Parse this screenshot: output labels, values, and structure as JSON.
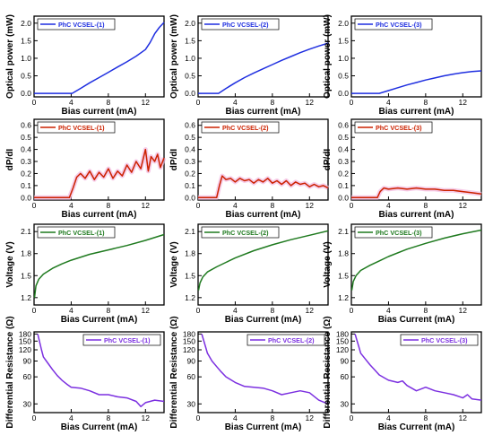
{
  "chart_data": [
    {
      "type": "line",
      "title": "",
      "xlabel": "Bias current (mA)",
      "ylabel": "Optical power (mW)",
      "xlim": [
        0,
        14
      ],
      "ylim": [
        -0.1,
        2.2
      ],
      "xticks": [
        "0",
        "4",
        "8",
        "12"
      ],
      "yticks": [
        "0.0",
        "0.5",
        "1.0",
        "1.5",
        "2.0"
      ],
      "legend_position": "top-left",
      "grid": false,
      "series": [
        {
          "name": "PhC VCSEL-(1)",
          "color": "#1f2fe0",
          "x": [
            0,
            4.1,
            5,
            6,
            7,
            8,
            9,
            10,
            11,
            12,
            12.5,
            13,
            13.5,
            14
          ],
          "y": [
            0,
            0,
            0.14,
            0.3,
            0.45,
            0.6,
            0.75,
            0.9,
            1.06,
            1.25,
            1.45,
            1.7,
            1.88,
            2.02
          ]
        }
      ]
    },
    {
      "type": "line",
      "title": "",
      "xlabel": "Bias current (mA)",
      "ylabel": "Optical power (mW)",
      "xlim": [
        0,
        14
      ],
      "ylim": [
        -0.1,
        2.2
      ],
      "xticks": [
        "0",
        "4",
        "8",
        "12"
      ],
      "yticks": [
        "0.0",
        "0.5",
        "1.0",
        "1.5",
        "2.0"
      ],
      "legend_position": "top-left",
      "grid": false,
      "series": [
        {
          "name": "PhC VCSEL-(2)",
          "color": "#1f2fe0",
          "x": [
            0,
            2.2,
            3,
            4,
            5,
            6,
            7,
            8,
            9,
            10,
            11,
            12,
            13,
            14
          ],
          "y": [
            0,
            0,
            0.14,
            0.3,
            0.45,
            0.58,
            0.7,
            0.82,
            0.94,
            1.05,
            1.16,
            1.26,
            1.35,
            1.43
          ]
        }
      ]
    },
    {
      "type": "line",
      "title": "",
      "xlabel": "Bias current (mA)",
      "ylabel": "Optical power (mW)",
      "xlim": [
        0,
        14
      ],
      "ylim": [
        -0.1,
        2.2
      ],
      "xticks": [
        "0",
        "4",
        "8",
        "12"
      ],
      "yticks": [
        "0.0",
        "0.5",
        "1.0",
        "1.5",
        "2.0"
      ],
      "legend_position": "top-left",
      "grid": false,
      "series": [
        {
          "name": "PhC VCSEL-(3)",
          "color": "#1f2fe0",
          "x": [
            0,
            3,
            4,
            5,
            6,
            7,
            8,
            9,
            10,
            11,
            12,
            13,
            14
          ],
          "y": [
            0,
            0,
            0.08,
            0.16,
            0.24,
            0.31,
            0.38,
            0.44,
            0.5,
            0.55,
            0.59,
            0.62,
            0.64
          ]
        }
      ]
    },
    {
      "type": "line",
      "title": "",
      "xlabel": "Bias current (mA)",
      "ylabel": "dP/dI",
      "xlim": [
        0,
        14
      ],
      "ylim": [
        -0.02,
        0.65
      ],
      "xticks": [
        "0",
        "4",
        "8",
        "12"
      ],
      "yticks": [
        "0.0",
        "0.1",
        "0.2",
        "0.3",
        "0.4",
        "0.5",
        "0.6"
      ],
      "legend_position": "top-left",
      "grid": false,
      "series": [
        {
          "name": "PhC VCSEL-(1)",
          "color": "#cc2200",
          "x": [
            0,
            3.8,
            4.2,
            4.6,
            5,
            5.5,
            6,
            6.5,
            7,
            7.5,
            8,
            8.5,
            9,
            9.5,
            10,
            10.5,
            11,
            11.5,
            12,
            12.3,
            12.6,
            13,
            13.3,
            13.6,
            14
          ],
          "y": [
            0,
            0,
            0.08,
            0.17,
            0.2,
            0.16,
            0.22,
            0.15,
            0.21,
            0.17,
            0.24,
            0.16,
            0.22,
            0.18,
            0.27,
            0.21,
            0.3,
            0.24,
            0.4,
            0.22,
            0.34,
            0.3,
            0.36,
            0.25,
            0.33
          ]
        }
      ]
    },
    {
      "type": "line",
      "title": "",
      "xlabel": "Bias current (mA)",
      "ylabel": "dP/dI",
      "xlim": [
        0,
        14
      ],
      "ylim": [
        -0.02,
        0.65
      ],
      "xticks": [
        "0",
        "4",
        "8",
        "12"
      ],
      "yticks": [
        "0.0",
        "0.1",
        "0.2",
        "0.3",
        "0.4",
        "0.5",
        "0.6"
      ],
      "legend_position": "top-left",
      "grid": false,
      "series": [
        {
          "name": "PhC VCSEL-(2)",
          "color": "#cc2200",
          "x": [
            0,
            2,
            2.3,
            2.6,
            3,
            3.5,
            4,
            4.5,
            5,
            5.5,
            6,
            6.5,
            7,
            7.5,
            8,
            8.5,
            9,
            9.5,
            10,
            10.5,
            11,
            11.5,
            12,
            12.5,
            13,
            13.5,
            14
          ],
          "y": [
            0,
            0,
            0.1,
            0.18,
            0.15,
            0.16,
            0.13,
            0.16,
            0.14,
            0.15,
            0.12,
            0.15,
            0.13,
            0.16,
            0.12,
            0.14,
            0.11,
            0.14,
            0.1,
            0.13,
            0.11,
            0.12,
            0.09,
            0.11,
            0.09,
            0.1,
            0.08
          ]
        }
      ]
    },
    {
      "type": "line",
      "title": "",
      "xlabel": "Bias current (mA)",
      "ylabel": "dP/dI",
      "xlim": [
        0,
        14
      ],
      "ylim": [
        -0.02,
        0.65
      ],
      "xticks": [
        "0",
        "4",
        "8",
        "12"
      ],
      "yticks": [
        "0.0",
        "0.1",
        "0.2",
        "0.3",
        "0.4",
        "0.5",
        "0.6"
      ],
      "legend_position": "top-left",
      "grid": false,
      "series": [
        {
          "name": "PhC VCSEL-(3)",
          "color": "#cc2200",
          "x": [
            0,
            2.8,
            3.1,
            3.5,
            4,
            5,
            6,
            7,
            8,
            9,
            10,
            11,
            12,
            13,
            14
          ],
          "y": [
            0,
            0,
            0.05,
            0.08,
            0.07,
            0.08,
            0.07,
            0.08,
            0.07,
            0.07,
            0.06,
            0.06,
            0.05,
            0.04,
            0.03
          ]
        }
      ]
    },
    {
      "type": "line",
      "title": "",
      "xlabel": "Bias Current (mA)",
      "ylabel": "Voltage (V)",
      "xlim": [
        0,
        14
      ],
      "ylim": [
        1.1,
        2.2
      ],
      "xticks": [
        "0",
        "4",
        "8",
        "12"
      ],
      "yticks": [
        "1.2",
        "1.5",
        "1.8",
        "2.1"
      ],
      "legend_position": "top-left",
      "grid": false,
      "series": [
        {
          "name": "PhC VCSEL-(1)",
          "color": "#1f7a1f",
          "x": [
            0.05,
            0.2,
            0.5,
            1,
            2,
            3,
            4,
            6,
            8,
            10,
            12,
            14
          ],
          "y": [
            1.2,
            1.36,
            1.45,
            1.52,
            1.6,
            1.66,
            1.71,
            1.79,
            1.85,
            1.91,
            1.98,
            2.06
          ]
        }
      ]
    },
    {
      "type": "line",
      "title": "",
      "xlabel": "Bias Current (mA)",
      "ylabel": "Voltage (V)",
      "xlim": [
        0,
        14
      ],
      "ylim": [
        1.1,
        2.2
      ],
      "xticks": [
        "0",
        "4",
        "8",
        "12"
      ],
      "yticks": [
        "1.2",
        "1.5",
        "1.8",
        "2.1"
      ],
      "legend_position": "top-left",
      "grid": false,
      "series": [
        {
          "name": "PhC VCSEL-(2)",
          "color": "#1f7a1f",
          "x": [
            0.05,
            0.2,
            0.5,
            1,
            2,
            3,
            4,
            6,
            8,
            10,
            12,
            14
          ],
          "y": [
            1.3,
            1.4,
            1.48,
            1.55,
            1.62,
            1.68,
            1.74,
            1.84,
            1.92,
            1.99,
            2.05,
            2.11
          ]
        }
      ]
    },
    {
      "type": "line",
      "title": "",
      "xlabel": "Bias Current (mA)",
      "ylabel": "Voltage (V)",
      "xlim": [
        0,
        14
      ],
      "ylim": [
        1.1,
        2.2
      ],
      "xticks": [
        "0",
        "4",
        "8",
        "12"
      ],
      "yticks": [
        "1.2",
        "1.5",
        "1.8",
        "2.1"
      ],
      "legend_position": "top-left",
      "grid": false,
      "series": [
        {
          "name": "PhC VCSEL-(3)",
          "color": "#1f7a1f",
          "x": [
            0.05,
            0.2,
            0.5,
            1,
            2,
            3,
            4,
            6,
            8,
            10,
            12,
            14
          ],
          "y": [
            1.3,
            1.42,
            1.5,
            1.57,
            1.64,
            1.7,
            1.76,
            1.86,
            1.94,
            2.01,
            2.07,
            2.12
          ]
        }
      ]
    },
    {
      "type": "line",
      "title": "",
      "xlabel": "Bias Current (mA)",
      "ylabel": "Differential Resistance (Ω)",
      "xlim": [
        0,
        14
      ],
      "ylim": [
        24,
        190
      ],
      "yscale": "log",
      "xticks": [
        "0",
        "4",
        "8",
        "12"
      ],
      "yticks": [
        "30",
        "60",
        "90",
        "120",
        "150",
        "180"
      ],
      "legend_position": "top-right",
      "grid": false,
      "series": [
        {
          "name": "PhC VCSEL-(1)",
          "color": "#7b2fe0",
          "x": [
            0.4,
            0.8,
            1,
            1.5,
            2,
            2.5,
            3,
            3.5,
            4,
            5,
            6,
            7,
            8,
            9,
            10,
            11,
            11.5,
            12,
            13,
            14
          ],
          "y": [
            180,
            120,
            100,
            85,
            72,
            62,
            55,
            50,
            46,
            45,
            42,
            38,
            38,
            36,
            35,
            32,
            28,
            31,
            33,
            32
          ]
        }
      ]
    },
    {
      "type": "line",
      "title": "",
      "xlabel": "Bias Current (mA)",
      "ylabel": "Differential Resistance (Ω)",
      "xlim": [
        0,
        14
      ],
      "ylim": [
        24,
        190
      ],
      "yscale": "log",
      "xticks": [
        "0",
        "4",
        "8",
        "12"
      ],
      "yticks": [
        "30",
        "60",
        "90",
        "120",
        "150",
        "180"
      ],
      "legend_position": "top-right",
      "grid": false,
      "series": [
        {
          "name": "PhC VCSEL-(2)",
          "color": "#7b2fe0",
          "x": [
            0.4,
            0.8,
            1,
            1.5,
            2,
            2.5,
            3,
            4,
            5,
            6,
            7,
            8,
            9,
            10,
            11,
            12,
            13,
            14
          ],
          "y": [
            180,
            130,
            110,
            90,
            78,
            68,
            60,
            52,
            47,
            46,
            45,
            42,
            38,
            40,
            42,
            40,
            33,
            30
          ]
        }
      ]
    },
    {
      "type": "line",
      "title": "",
      "xlabel": "Bias Current (mA)",
      "ylabel": "Differential Resistance (Ω)",
      "xlim": [
        0,
        14
      ],
      "ylim": [
        24,
        190
      ],
      "yscale": "log",
      "xticks": [
        "0",
        "4",
        "8",
        "12"
      ],
      "yticks": [
        "30",
        "60",
        "90",
        "120",
        "150",
        "180"
      ],
      "legend_position": "top-right",
      "grid": false,
      "series": [
        {
          "name": "PhC VCSEL-(3)",
          "color": "#7b2fe0",
          "x": [
            0.4,
            0.8,
            1,
            1.5,
            2,
            2.5,
            3,
            4,
            5,
            5.5,
            6,
            7,
            8,
            9,
            10,
            11,
            12,
            12.5,
            13,
            14
          ],
          "y": [
            180,
            130,
            110,
            95,
            82,
            72,
            63,
            55,
            52,
            54,
            48,
            42,
            46,
            42,
            40,
            38,
            35,
            38,
            34,
            33
          ]
        }
      ]
    }
  ]
}
